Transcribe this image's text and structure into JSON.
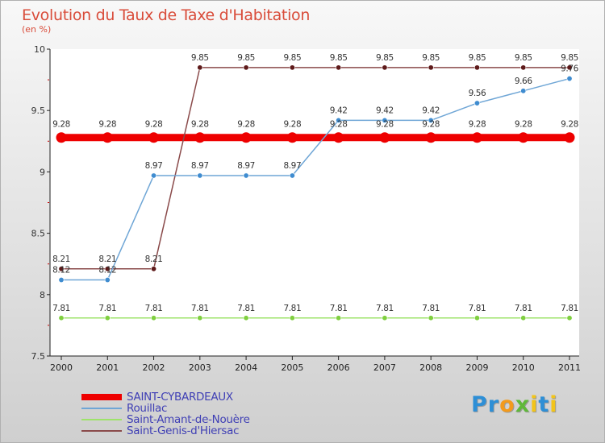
{
  "title": "Evolution du Taux de Taxe d'Habitation",
  "subtitle": "(en %)",
  "logo": "Proxiti",
  "chart_data": {
    "type": "line",
    "title": "Evolution du Taux de Taxe d'Habitation",
    "ylabel": "(en %)",
    "xlabel": "",
    "ylim": [
      7.5,
      10
    ],
    "yticks": [
      "10",
      "9.5",
      "9",
      "8.5",
      "8",
      "7.5"
    ],
    "categories": [
      "2000",
      "2001",
      "2002",
      "2003",
      "2004",
      "2005",
      "2006",
      "2007",
      "2008",
      "2009",
      "2010",
      "2011"
    ],
    "series": [
      {
        "name": "SAINT-CYBARDEAUX",
        "color": "#ee0000",
        "values": [
          9.28,
          9.28,
          9.28,
          9.28,
          9.28,
          9.28,
          9.28,
          9.28,
          9.28,
          9.28,
          9.28,
          9.28
        ],
        "labels": [
          "9.28",
          "9.28",
          "9.28",
          "9.28",
          "9.28",
          "9.28",
          "9.28",
          "9.28",
          "9.28",
          "9.28",
          "9.28",
          "9.28"
        ]
      },
      {
        "name": "Rouillac",
        "color": "#6fa6d6",
        "marker_color": "#3f8cd0",
        "values": [
          8.12,
          8.12,
          8.97,
          8.97,
          8.97,
          8.97,
          9.42,
          9.42,
          9.42,
          9.56,
          9.66,
          9.76
        ],
        "labels": [
          "8.12",
          "8.12",
          "8.97",
          "8.97",
          "8.97",
          "8.97",
          "9.42",
          "9.42",
          "9.42",
          "9.56",
          "9.66",
          "9.76"
        ]
      },
      {
        "name": "Saint-Amant-de-Nouère",
        "color": "#9ee36a",
        "marker_color": "#7fcf3f",
        "values": [
          7.81,
          7.81,
          7.81,
          7.81,
          7.81,
          7.81,
          7.81,
          7.81,
          7.81,
          7.81,
          7.81,
          7.81
        ],
        "labels": [
          "7.81",
          "7.81",
          "7.81",
          "7.81",
          "7.81",
          "7.81",
          "7.81",
          "7.81",
          "7.81",
          "7.81",
          "7.81",
          "7.81"
        ]
      },
      {
        "name": "Saint-Genis-d'Hiersac",
        "color": "#8a4a4a",
        "marker_color": "#5e1a1a",
        "values": [
          8.21,
          8.21,
          8.21,
          9.85,
          9.85,
          9.85,
          9.85,
          9.85,
          9.85,
          9.85,
          9.85,
          9.85
        ],
        "labels": [
          "8.21",
          "8.21",
          "8.21",
          "9.85",
          "9.85",
          "9.85",
          "9.85",
          "9.85",
          "9.85",
          "9.85",
          "9.85",
          "9.85"
        ]
      }
    ]
  }
}
